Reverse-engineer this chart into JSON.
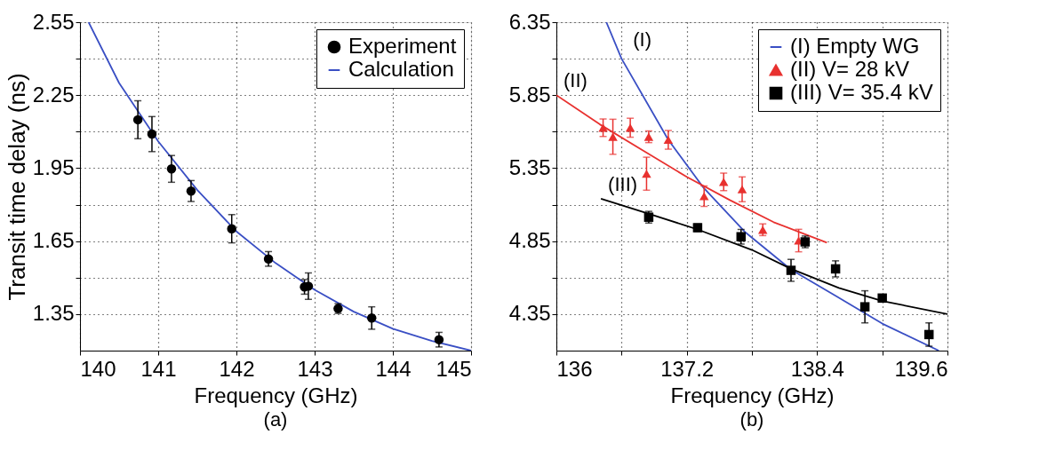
{
  "chart_data": [
    {
      "type": "scatter",
      "xlabel": "Frequency (GHz)",
      "ylabel": "Transit time delay (ns)",
      "annotations": [
        "(a)"
      ],
      "xlim": [
        140,
        145
      ],
      "ylim": [
        1.2,
        2.55
      ],
      "xticks": [
        140,
        141,
        142,
        143,
        144,
        145
      ],
      "yticks": [
        1.35,
        {
          "value": 1.5,
          "label": null
        },
        1.65,
        {
          "value": 1.8,
          "label": null
        },
        1.95,
        {
          "value": 2.1,
          "label": null
        },
        2.25,
        {
          "value": 2.4,
          "label": null
        },
        2.55
      ],
      "grid": true,
      "legend": "top right",
      "series": [
        {
          "name": "Experiment",
          "marker": "circle",
          "color": "#000000",
          "x": [
            140.74,
            140.92,
            141.17,
            141.42,
            141.94,
            142.41,
            142.87,
            142.92,
            143.3,
            143.73,
            144.59
          ],
          "values": [
            2.149,
            2.09,
            1.947,
            1.856,
            1.701,
            1.577,
            1.462,
            1.465,
            1.373,
            1.334,
            1.245
          ],
          "errors": [
            0.078,
            0.072,
            0.055,
            0.043,
            0.058,
            0.03,
            0.03,
            0.054,
            0.02,
            0.046,
            0.03
          ]
        },
        {
          "name": "Calculation",
          "type": "line",
          "color": "#3a4fc4",
          "x": [
            140.11,
            140.5,
            141,
            141.5,
            142,
            142.5,
            143,
            143.5,
            144,
            144.5,
            145
          ],
          "values": [
            2.55,
            2.3,
            2.06,
            1.86,
            1.69,
            1.56,
            1.45,
            1.36,
            1.29,
            1.24,
            1.2
          ]
        }
      ]
    },
    {
      "type": "scatter",
      "xlabel": "Frequency (GHz)",
      "annotations": [
        "(b)",
        "(I)",
        "(II)",
        "(III)"
      ],
      "xlim": [
        136,
        139.6
      ],
      "ylim": [
        4.1,
        6.35
      ],
      "xticks": [
        136,
        {
          "value": 136.6,
          "label": null
        },
        137.2,
        {
          "value": 137.8,
          "label": null
        },
        138.4,
        {
          "value": 139.0,
          "label": null
        },
        139.6
      ],
      "yticks": [
        4.35,
        {
          "value": 4.6,
          "label": null
        },
        4.85,
        {
          "value": 5.1,
          "label": null
        },
        5.35,
        {
          "value": 5.6,
          "label": null
        },
        5.85,
        {
          "value": 6.1,
          "label": null
        },
        6.35
      ],
      "grid": true,
      "legend": "top right",
      "series": [
        {
          "name": "(I) Empty WG",
          "type": "line",
          "color": "#3a4fc4",
          "x": [
            136.46,
            136.6,
            137.03,
            137.35,
            137.74,
            138.16,
            138.56,
            139.0,
            139.52
          ],
          "values": [
            6.35,
            6.1,
            5.544,
            5.22,
            4.91,
            4.655,
            4.48,
            4.285,
            4.1
          ]
        },
        {
          "type": "line",
          "color": "#e8312f",
          "x": [
            136.0,
            136.4,
            136.8,
            137.2,
            137.6,
            138.0,
            138.49
          ],
          "values": [
            5.85,
            5.65,
            5.47,
            5.29,
            5.13,
            4.98,
            4.84
          ]
        },
        {
          "type": "line",
          "color": "#000000",
          "x": [
            136.41,
            136.8,
            137.3,
            137.8,
            138.16,
            138.6,
            139.0,
            139.6
          ],
          "values": [
            5.14,
            5.05,
            4.93,
            4.79,
            4.66,
            4.53,
            4.44,
            4.35
          ]
        },
        {
          "name": "(II) V= 28 kV",
          "marker": "triangle",
          "color": "#e8312f",
          "x": [
            136.43,
            136.52,
            136.68,
            136.83,
            136.85,
            137.03,
            137.36,
            137.54,
            137.71,
            137.9,
            138.23
          ],
          "values": [
            5.627,
            5.565,
            5.627,
            5.312,
            5.565,
            5.544,
            5.158,
            5.256,
            5.205,
            4.928,
            4.854
          ],
          "errors": [
            0.06,
            0.12,
            0.065,
            0.113,
            0.04,
            0.064,
            0.07,
            0.06,
            0.085,
            0.04,
            0.077
          ]
        },
        {
          "name": "(III) V= 35.4 kV",
          "marker": "square",
          "color": "#000000",
          "x": [
            136.85,
            137.3,
            137.7,
            138.16,
            138.29,
            138.57,
            138.84,
            139.0,
            139.43
          ],
          "values": [
            5.014,
            4.942,
            4.88,
            4.65,
            4.845,
            4.66,
            4.4,
            4.46,
            4.21
          ],
          "errors": [
            0.04,
            0.025,
            0.05,
            0.075,
            0.04,
            0.055,
            0.11,
            0.02,
            0.08
          ]
        }
      ]
    }
  ]
}
